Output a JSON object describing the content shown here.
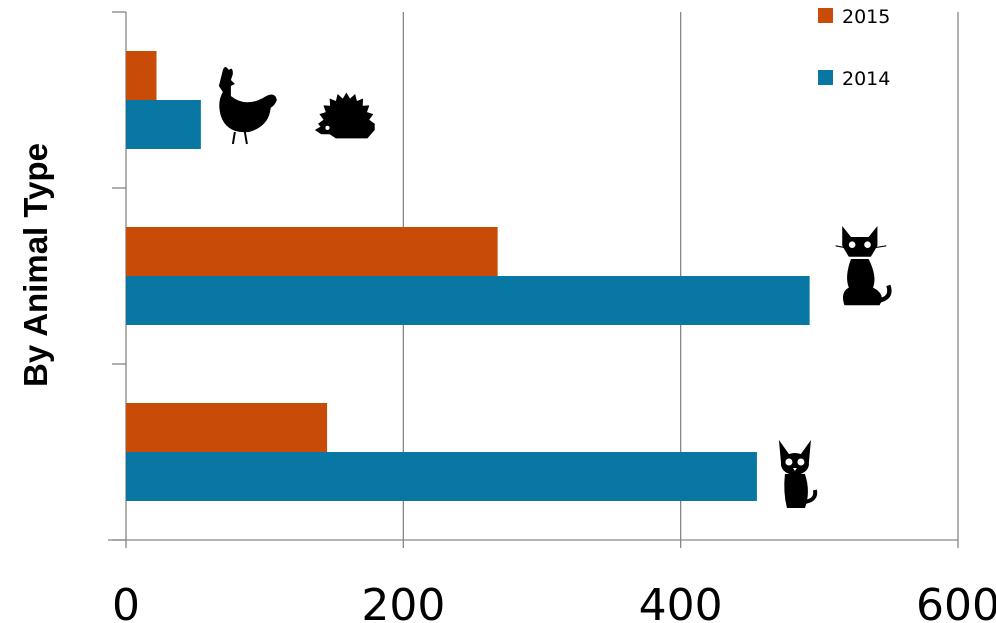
{
  "chart_data": {
    "type": "bar",
    "orientation": "horizontal",
    "title": "",
    "xlabel": "",
    "ylabel": "By Animal Type",
    "categories": [
      "dogs",
      "cats",
      "chickens & hedgehogs"
    ],
    "category_icons": [
      [
        "dog-icon"
      ],
      [
        "cat-icon"
      ],
      [
        "chicken-icon",
        "hedgehog-icon"
      ]
    ],
    "series": [
      {
        "name": "2015",
        "values": [
          145,
          268,
          22
        ]
      },
      {
        "name": "2014",
        "values": [
          455,
          493,
          54
        ]
      }
    ],
    "xlim": [
      0,
      600
    ],
    "xticks": [
      "0",
      "200",
      "400",
      "600"
    ],
    "grid": true,
    "legend_position": "top-right",
    "colors": {
      "2015": "#c84b08",
      "2014": "#0877a3",
      "gridline": "#868686",
      "axis": "#868686",
      "text": "#000000"
    }
  }
}
